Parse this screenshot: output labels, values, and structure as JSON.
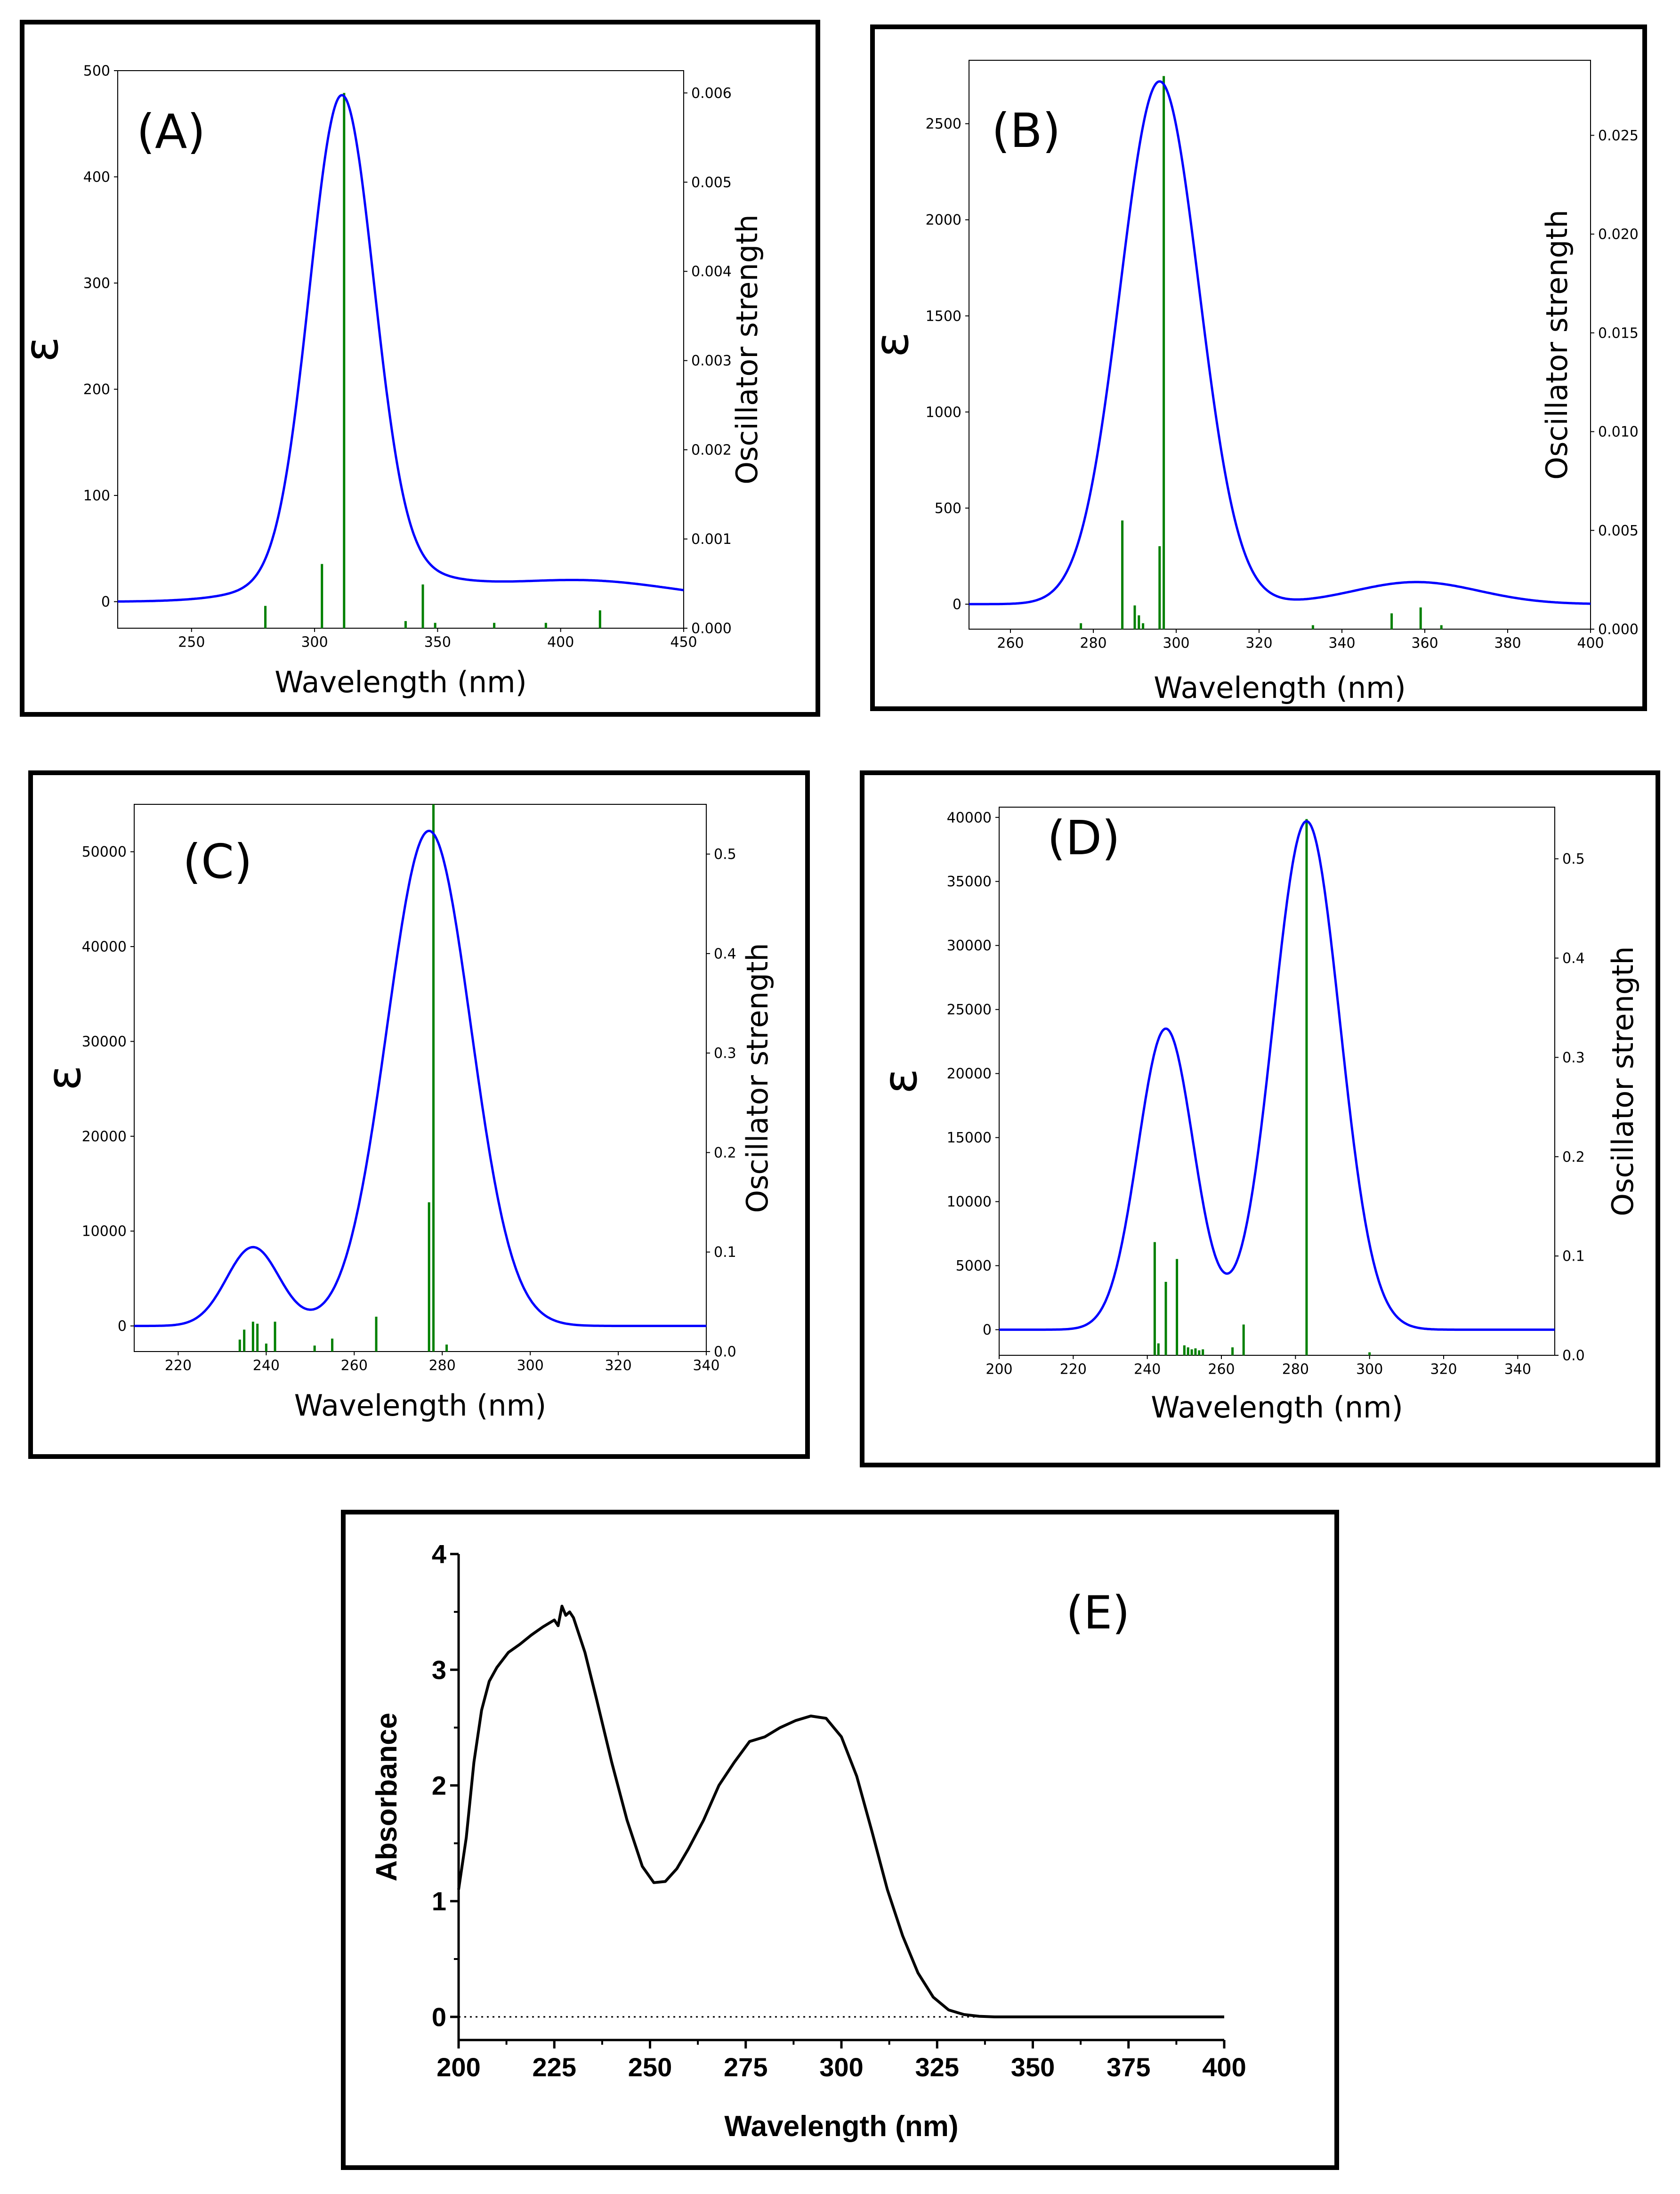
{
  "chart_data": [
    {
      "id": "A",
      "type": "line",
      "title": "(A)",
      "xlabel": "Wavelength (nm)",
      "ylabel": "ε",
      "y2label": "Oscillator strength",
      "xlim": [
        220,
        450
      ],
      "ylim": [
        -25,
        500
      ],
      "y2lim": [
        0,
        0.00625
      ],
      "xticks": [
        250,
        300,
        350,
        400,
        450
      ],
      "yticks": [
        0,
        100,
        200,
        300,
        400,
        500
      ],
      "y2ticks": [
        0.0,
        0.001,
        0.002,
        0.003,
        0.004,
        0.005,
        0.006
      ],
      "y2tick_labels": [
        "0.000",
        "0.001",
        "0.002",
        "0.003",
        "0.004",
        "0.005",
        "0.006"
      ],
      "curve": {
        "baseline": 0,
        "gaussians": [
          {
            "center": 311,
            "amp": 445,
            "width": 13
          },
          {
            "center": 318,
            "amp": 32,
            "width": 30
          },
          {
            "center": 408,
            "amp": 20,
            "width": 38
          }
        ],
        "color": "#0000ff"
      },
      "sticks": {
        "color": "#008000",
        "x": [
          280,
          303,
          312,
          337,
          344,
          349,
          373,
          394,
          416
        ],
        "f": [
          0.00025,
          0.00072,
          0.006,
          8e-05,
          0.00049,
          6e-05,
          6e-05,
          6e-05,
          0.0002
        ]
      }
    },
    {
      "id": "B",
      "type": "line",
      "title": "(B)",
      "xlabel": "Wavelength (nm)",
      "ylabel": "ε",
      "y2label": "Oscillator strength",
      "xlim": [
        250,
        400
      ],
      "ylim": [
        -130,
        2830
      ],
      "y2lim": [
        0,
        0.0288
      ],
      "xticks": [
        260,
        280,
        300,
        320,
        340,
        360,
        380,
        400
      ],
      "yticks": [
        0,
        500,
        1000,
        1500,
        2000,
        2500
      ],
      "y2ticks": [
        0.0,
        0.005,
        0.01,
        0.015,
        0.02,
        0.025
      ],
      "y2tick_labels": [
        "0.000",
        "0.005",
        "0.010",
        "0.015",
        "0.020",
        "0.025"
      ],
      "curve": {
        "baseline": 0,
        "gaussians": [
          {
            "center": 296,
            "amp": 2720,
            "width": 9.5
          },
          {
            "center": 358,
            "amp": 115,
            "width": 15
          }
        ],
        "color": "#0000ff"
      },
      "sticks": {
        "color": "#008000",
        "x": [
          277,
          287,
          290,
          291,
          292,
          296,
          297,
          333,
          352,
          359,
          364
        ],
        "f": [
          0.0003,
          0.0055,
          0.0012,
          0.0007,
          0.0003,
          0.0042,
          0.028,
          0.0002,
          0.0008,
          0.0011,
          0.0002
        ]
      }
    },
    {
      "id": "C",
      "type": "line",
      "title": "(C)",
      "xlabel": "Wavelength (nm)",
      "ylabel": "ε",
      "y2label": "Oscillator strength",
      "xlim": [
        210,
        340
      ],
      "ylim": [
        -2700,
        55000
      ],
      "y2lim": [
        0,
        0.55
      ],
      "xticks": [
        220,
        240,
        260,
        280,
        300,
        320,
        340
      ],
      "yticks": [
        0,
        10000,
        20000,
        30000,
        40000,
        50000
      ],
      "y2ticks": [
        0.0,
        0.1,
        0.2,
        0.3,
        0.4,
        0.5
      ],
      "y2tick_labels": [
        "0.0",
        "0.1",
        "0.2",
        "0.3",
        "0.4",
        "0.5"
      ],
      "curve": {
        "baseline": 0,
        "gaussians": [
          {
            "center": 237,
            "amp": 8300,
            "width": 6
          },
          {
            "center": 277,
            "amp": 52200,
            "width": 9.5
          }
        ],
        "color": "#0000ff"
      },
      "sticks": {
        "color": "#008000",
        "x": [
          234,
          235,
          237,
          238,
          240,
          242,
          251,
          255,
          265,
          277,
          278,
          281
        ],
        "f": [
          0.012,
          0.022,
          0.03,
          0.028,
          0.008,
          0.03,
          0.006,
          0.013,
          0.035,
          0.15,
          0.55,
          0.007
        ]
      }
    },
    {
      "id": "D",
      "type": "line",
      "title": "(D)",
      "xlabel": "Wavelength (nm)",
      "ylabel": "ε",
      "y2label": "Oscillator strength",
      "xlim": [
        200,
        350
      ],
      "ylim": [
        -2000,
        40800
      ],
      "y2lim": [
        0,
        0.552
      ],
      "xticks": [
        200,
        220,
        240,
        260,
        280,
        300,
        320,
        340
      ],
      "yticks": [
        0,
        5000,
        10000,
        15000,
        20000,
        25000,
        30000,
        35000,
        40000
      ],
      "y2ticks": [
        0.0,
        0.1,
        0.2,
        0.3,
        0.4,
        0.5
      ],
      "y2tick_labels": [
        "0.0",
        "0.1",
        "0.2",
        "0.3",
        "0.4",
        "0.5"
      ],
      "curve": {
        "baseline": 0,
        "gaussians": [
          {
            "center": 245,
            "amp": 23500,
            "width": 7.5
          },
          {
            "center": 283,
            "amp": 39700,
            "width": 9
          }
        ],
        "color": "#0000ff"
      },
      "sticks": {
        "color": "#008000",
        "x": [
          242,
          243,
          245,
          248,
          250,
          251,
          252,
          253,
          254,
          255,
          263,
          266,
          283,
          300
        ],
        "f": [
          0.114,
          0.012,
          0.074,
          0.097,
          0.01,
          0.008,
          0.006,
          0.007,
          0.005,
          0.006,
          0.008,
          0.031,
          0.54,
          0.003
        ]
      }
    },
    {
      "id": "E",
      "type": "line",
      "title": "(E)",
      "xlabel": "Wavelength (nm)",
      "ylabel": "Absorbance",
      "xlim": [
        200,
        400
      ],
      "ylim": [
        -0.2,
        4
      ],
      "xticks": [
        200,
        225,
        250,
        275,
        300,
        325,
        350,
        375,
        400
      ],
      "yticks": [
        0,
        1,
        2,
        3,
        4
      ],
      "series": [
        {
          "name": "Absorbance",
          "color": "#000000",
          "x": [
            200,
            202,
            204,
            206,
            208,
            210,
            213,
            216,
            219,
            222,
            225,
            226,
            227,
            228,
            229,
            230,
            233,
            236,
            240,
            244,
            248,
            251,
            254,
            257,
            260,
            264,
            268,
            272,
            276,
            280,
            284,
            288,
            292,
            296,
            300,
            304,
            308,
            312,
            316,
            320,
            324,
            328,
            332,
            336,
            340,
            350,
            360,
            380,
            400
          ],
          "y": [
            1.1,
            1.55,
            2.2,
            2.65,
            2.9,
            3.02,
            3.15,
            3.22,
            3.3,
            3.37,
            3.43,
            3.38,
            3.55,
            3.47,
            3.5,
            3.45,
            3.15,
            2.75,
            2.2,
            1.7,
            1.3,
            1.16,
            1.17,
            1.28,
            1.45,
            1.7,
            2.0,
            2.2,
            2.38,
            2.42,
            2.5,
            2.56,
            2.6,
            2.58,
            2.42,
            2.08,
            1.6,
            1.1,
            0.7,
            0.38,
            0.17,
            0.06,
            0.02,
            0.005,
            0.0,
            0.0,
            0.0,
            0.0,
            0.0
          ]
        }
      ],
      "zero_line": 0
    }
  ]
}
